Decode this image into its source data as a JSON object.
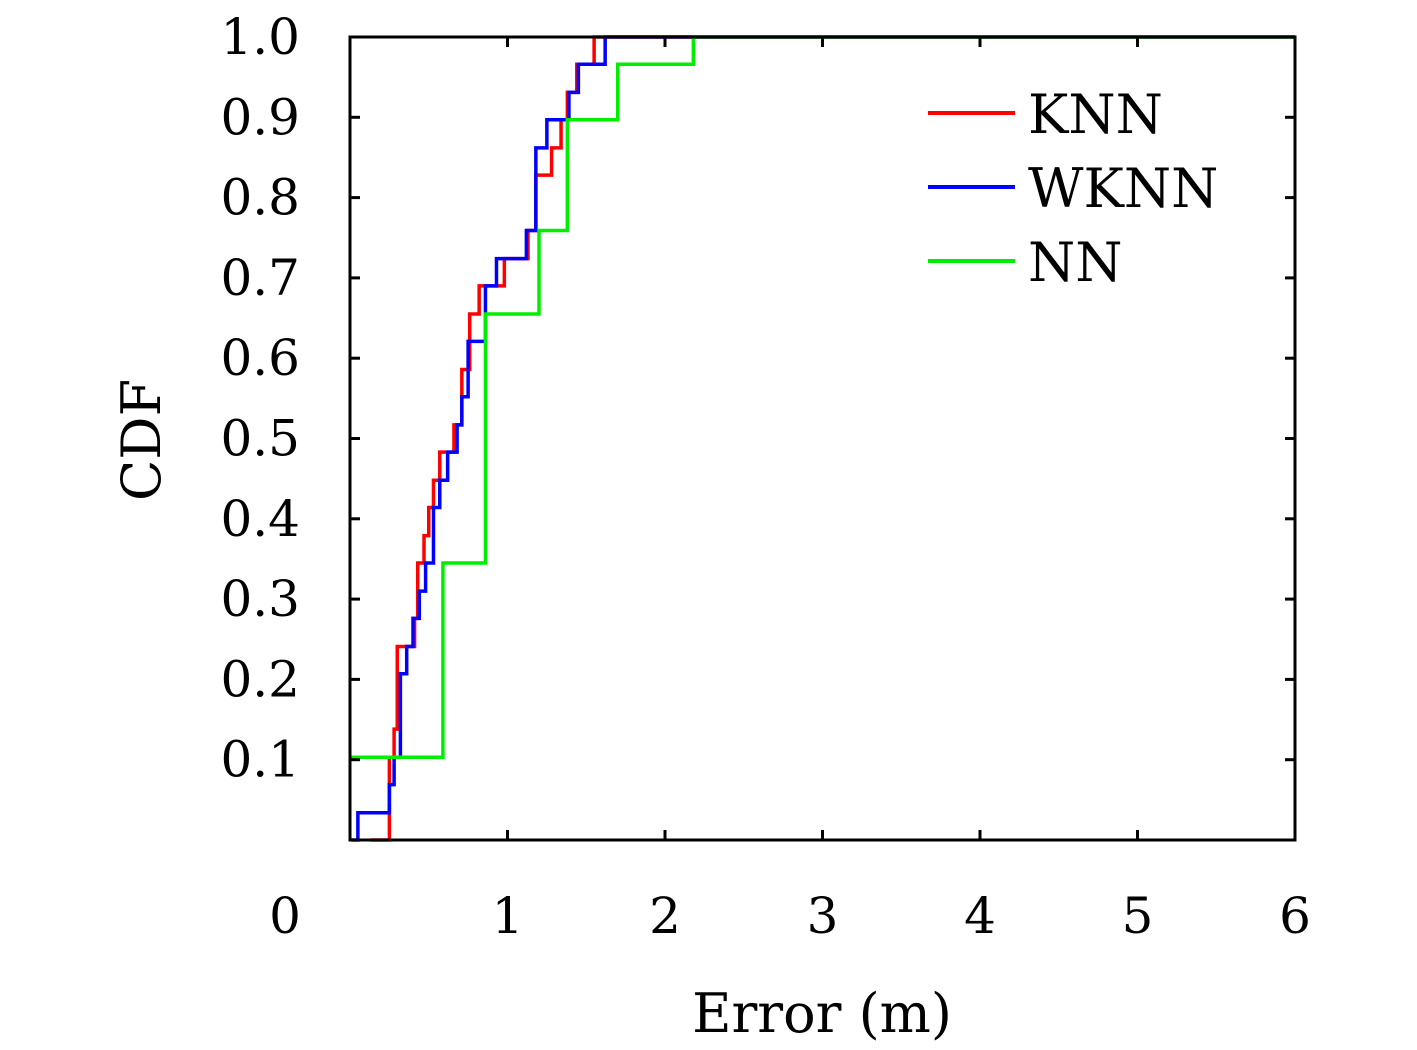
{
  "chart_data": {
    "type": "line",
    "xlabel": "Error (m)",
    "ylabel": "CDF",
    "xlim": [
      0,
      6
    ],
    "ylim": [
      0,
      1
    ],
    "x_ticks": [
      "0",
      "1",
      "2",
      "3",
      "4",
      "5",
      "6"
    ],
    "y_ticks": [
      "0.1",
      "0.2",
      "0.3",
      "0.4",
      "0.5",
      "0.6",
      "0.7",
      "0.8",
      "0.9",
      "1.0"
    ],
    "grid": false,
    "legend_position": "top-right",
    "series": [
      {
        "name": "KNN",
        "color": "#ff0000",
        "x": [
          0.13,
          0.25,
          0.28,
          0.3,
          0.38,
          0.41,
          0.43,
          0.47,
          0.5,
          0.53,
          0.57,
          0.63,
          0.66,
          0.71,
          0.76,
          0.82,
          0.87,
          0.98,
          1.13,
          1.18,
          1.28,
          1.34,
          1.38,
          1.44,
          1.49,
          1.55,
          6.0
        ],
        "y": [
          0.0,
          0.103,
          0.138,
          0.241,
          0.241,
          0.276,
          0.345,
          0.379,
          0.414,
          0.448,
          0.483,
          0.483,
          0.517,
          0.586,
          0.655,
          0.69,
          0.69,
          0.724,
          0.759,
          0.828,
          0.862,
          0.897,
          0.931,
          0.966,
          0.966,
          1.0,
          1.0
        ]
      },
      {
        "name": "WKNN",
        "color": "#0000ff",
        "x": [
          0.01,
          0.05,
          0.25,
          0.28,
          0.32,
          0.36,
          0.4,
          0.44,
          0.48,
          0.53,
          0.57,
          0.62,
          0.68,
          0.71,
          0.75,
          0.82,
          0.86,
          0.93,
          1.12,
          1.18,
          1.25,
          1.34,
          1.39,
          1.42,
          1.45,
          1.52,
          1.62,
          6.0
        ],
        "y": [
          0.0,
          0.034,
          0.069,
          0.103,
          0.207,
          0.241,
          0.276,
          0.31,
          0.345,
          0.414,
          0.448,
          0.483,
          0.517,
          0.552,
          0.621,
          0.621,
          0.69,
          0.724,
          0.759,
          0.862,
          0.897,
          0.897,
          0.931,
          0.931,
          0.966,
          0.966,
          1.0,
          1.0
        ]
      },
      {
        "name": "NN",
        "color": "#00ee00",
        "x": [
          0.0,
          0.59,
          0.86,
          1.2,
          1.38,
          1.7,
          2.18,
          6.0
        ],
        "y": [
          0.103,
          0.345,
          0.655,
          0.759,
          0.897,
          0.966,
          1.0,
          1.0
        ]
      }
    ]
  }
}
